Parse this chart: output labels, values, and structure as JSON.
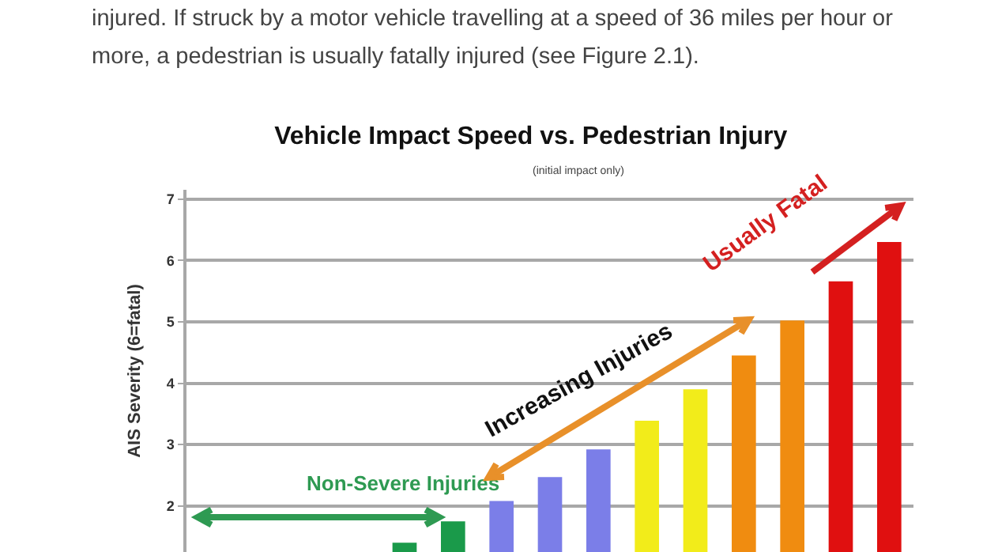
{
  "chart_data": {
    "type": "bar",
    "title": "Vehicle Impact Speed vs. Pedestrian Injury",
    "subtitle": "(initial impact only)",
    "ylabel": "AIS Severity (6=fatal)",
    "categories": [
      null,
      null,
      null,
      null,
      null,
      null,
      null,
      null,
      null,
      null,
      null,
      null,
      null,
      null,
      null
    ],
    "values": [
      null,
      null,
      null,
      null,
      1.4,
      1.75,
      2.08,
      2.47,
      2.92,
      3.39,
      3.9,
      4.45,
      5.02,
      5.66,
      6.3
    ],
    "colors": [
      "#1a9a4a",
      "#1a9a4a",
      "#1a9a4a",
      "#1a9a4a",
      "#1a9a4a",
      "#1a9a4a",
      "#7b7ee8",
      "#7b7ee8",
      "#7b7ee8",
      "#f2ec1a",
      "#f2ec1a",
      "#f08c10",
      "#f08c10",
      "#e01010",
      "#e01010"
    ],
    "ylim": [
      1.25,
      7.15
    ],
    "yticks": [
      2,
      3,
      4,
      5,
      6,
      7
    ],
    "grid": "y",
    "tick_labels": "y",
    "annotations": [
      "injured. If struck by a motor vehicle travelling at a speed of 36 miles per hour or more, a pedestrian is usually fatally injured (see Figure 2.1).",
      "Non-Severe Injuries",
      "Increasing Injuries",
      "Usually Fatal"
    ]
  }
}
